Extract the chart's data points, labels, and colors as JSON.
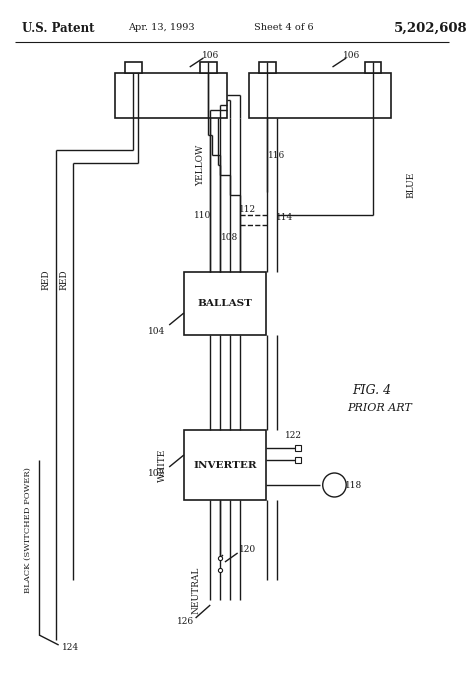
{
  "bg_color": "#ffffff",
  "line_color": "#1a1a1a",
  "title_text": "U.S. Patent",
  "date_text": "Apr. 13, 1993",
  "sheet_text": "Sheet 4 of 6",
  "patent_num": "5,202,608",
  "fig_label": "FIG. 4",
  "prior_art": "PRIOR ART",
  "ballast_label": "BALLAST",
  "inverter_label": "INVERTER",
  "red1_label": "RED",
  "red2_label": "RED",
  "yellow_label": "YELLOW",
  "blue_label": "BLUE",
  "white_label": "WHITE",
  "black_label": "BLACK (SWITCHED POWER)",
  "neutral_label": "NEUTRAL",
  "r106a": "106",
  "r106b": "106",
  "r104": "104",
  "r102": "102",
  "r108": "108",
  "r110": "110",
  "r112": "112",
  "r114": "114",
  "r116": "116",
  "r118": "118",
  "r120": "120",
  "r122": "122",
  "r124": "124",
  "r126": "126"
}
